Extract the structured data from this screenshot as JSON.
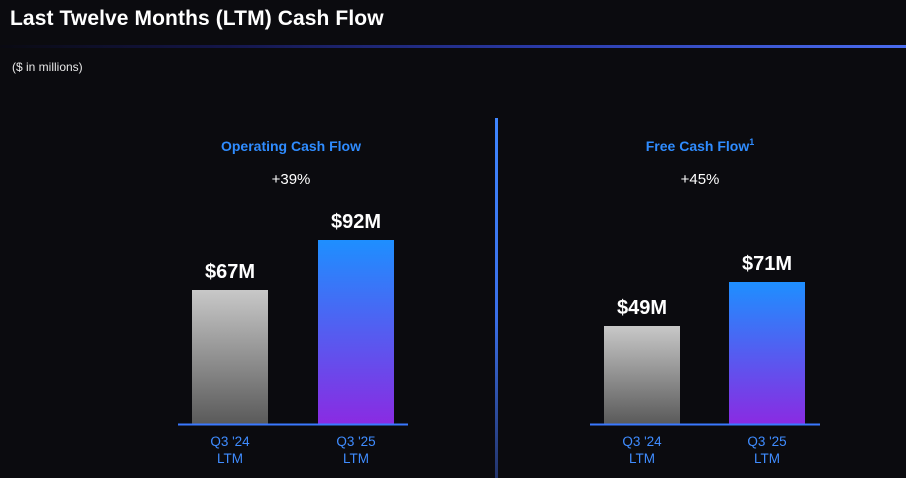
{
  "header": {
    "title": "Last Twelve Months (LTM) Cash Flow",
    "units": "($ in millions)"
  },
  "colors": {
    "background": "#0b0b0f",
    "panel_title": "#2f8cff",
    "prior_bar_top": "#c8c8c8",
    "prior_bar_bottom": "#5a5a5a",
    "current_bar_top": "#1e8fff",
    "current_bar_bottom": "#8a2be2",
    "baseline": "#3a78ff",
    "tick_text": "#3f8cff",
    "text": "#ffffff"
  },
  "chart_data": [
    {
      "type": "bar",
      "title": "Operating Cash Flow",
      "title_superscript": "",
      "change": "+39%",
      "categories": [
        "Q3 '24 LTM",
        "Q3 '25 LTM"
      ],
      "tick_lines": [
        [
          "Q3 '24",
          "LTM"
        ],
        [
          "Q3 '25",
          "LTM"
        ]
      ],
      "values": [
        67,
        92
      ],
      "value_labels": [
        "$67M",
        "$92M"
      ],
      "ylim": [
        0,
        100
      ]
    },
    {
      "type": "bar",
      "title": "Free Cash Flow",
      "title_superscript": "1",
      "change": "+45%",
      "categories": [
        "Q3 '24 LTM",
        "Q3 '25 LTM"
      ],
      "tick_lines": [
        [
          "Q3 '24",
          "LTM"
        ],
        [
          "Q3 '25",
          "LTM"
        ]
      ],
      "values": [
        49,
        71
      ],
      "value_labels": [
        "$49M",
        "$71M"
      ],
      "ylim": [
        0,
        100
      ]
    }
  ]
}
